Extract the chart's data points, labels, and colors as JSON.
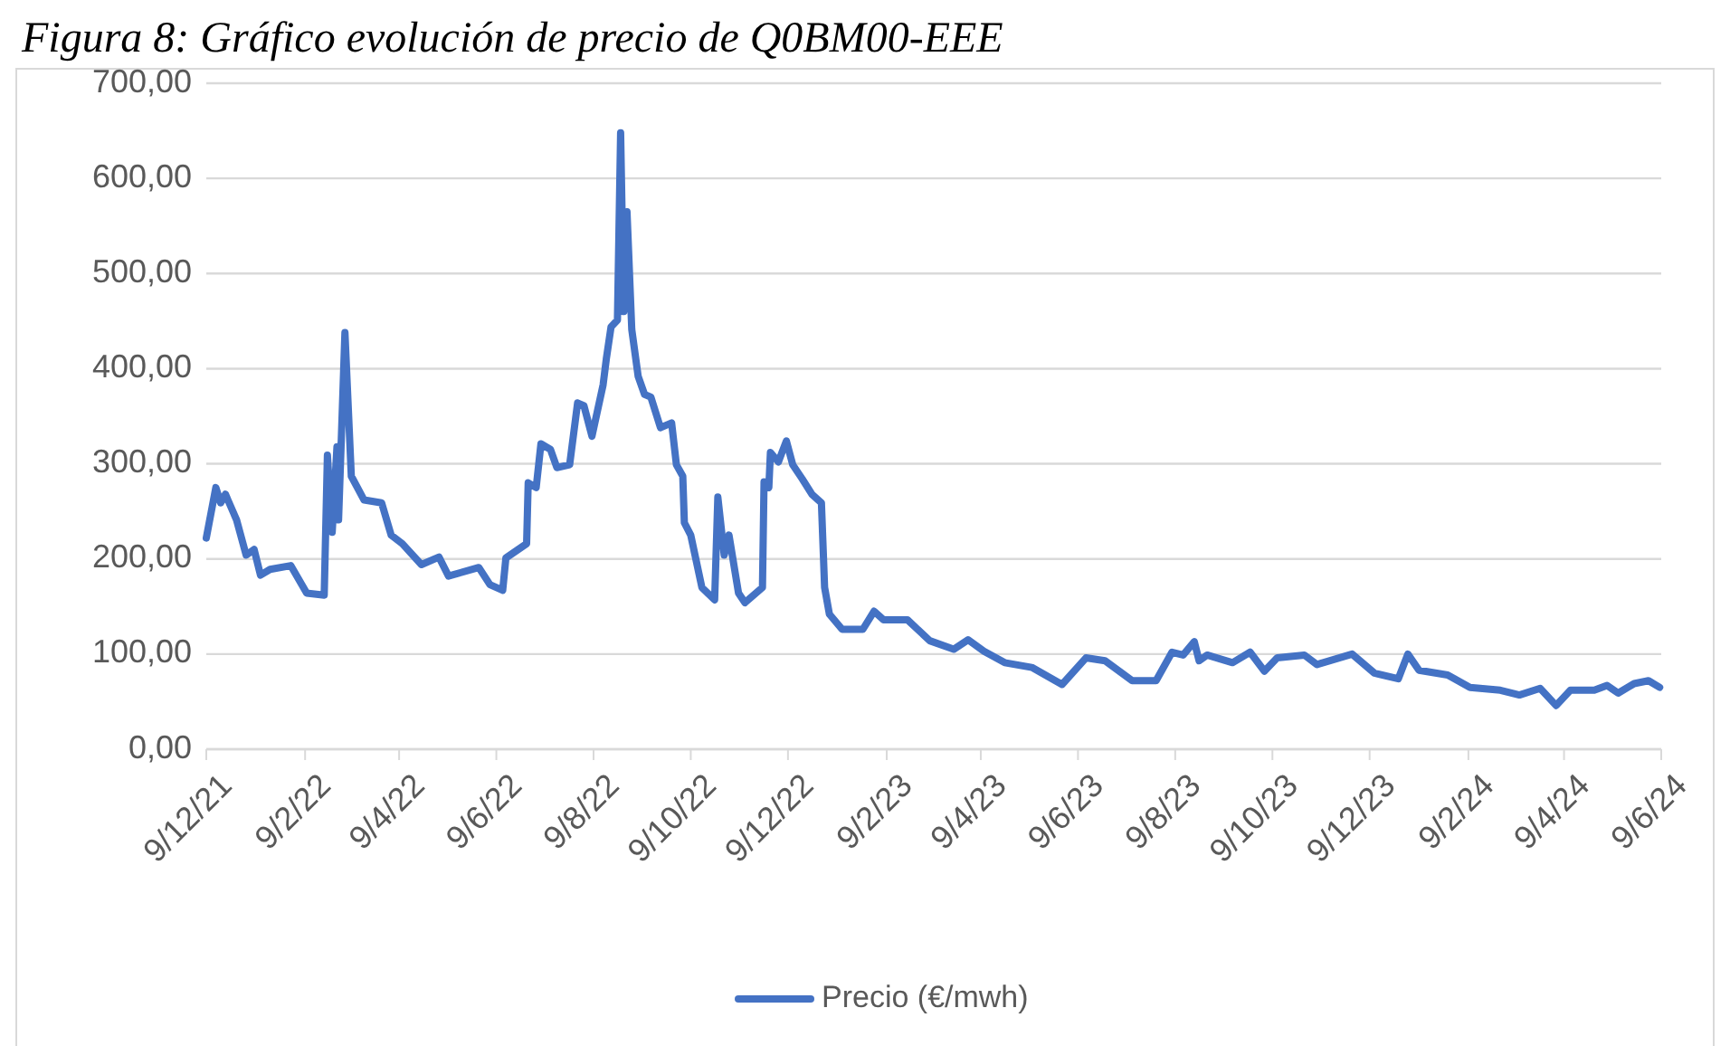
{
  "chart_data": {
    "type": "line",
    "title": "Figura 8: Gráfico evolución de precio de Q0BM00-EEE",
    "legend": "bottom",
    "grid": "y",
    "marker": "none",
    "line_style": "solid",
    "xlim": [
      "2021-12-09",
      "2024-06-09"
    ],
    "xticks": [
      {
        "value": "2021-12-09",
        "label": "9/12/21"
      },
      {
        "value": "2022-02-09",
        "label": "9/2/22"
      },
      {
        "value": "2022-04-09",
        "label": "9/4/22"
      },
      {
        "value": "2022-06-09",
        "label": "9/6/22"
      },
      {
        "value": "2022-08-09",
        "label": "9/8/22"
      },
      {
        "value": "2022-10-09",
        "label": "9/10/22"
      },
      {
        "value": "2022-12-09",
        "label": "9/12/22"
      },
      {
        "value": "2023-02-09",
        "label": "9/2/23"
      },
      {
        "value": "2023-04-09",
        "label": "9/4/23"
      },
      {
        "value": "2023-06-09",
        "label": "9/6/23"
      },
      {
        "value": "2023-08-09",
        "label": "9/8/23"
      },
      {
        "value": "2023-10-09",
        "label": "9/10/23"
      },
      {
        "value": "2023-12-09",
        "label": "9/12/23"
      },
      {
        "value": "2024-02-09",
        "label": "9/2/24"
      },
      {
        "value": "2024-04-09",
        "label": "9/4/24"
      },
      {
        "value": "2024-06-09",
        "label": "9/6/24"
      }
    ],
    "ylim": [
      0,
      700
    ],
    "yticks": [
      {
        "value": 0,
        "label": "0,00"
      },
      {
        "value": 100,
        "label": "100,00"
      },
      {
        "value": 200,
        "label": "200,00"
      },
      {
        "value": 300,
        "label": "300,00"
      },
      {
        "value": 400,
        "label": "400,00"
      },
      {
        "value": 500,
        "label": "500,00"
      },
      {
        "value": 600,
        "label": "600,00"
      },
      {
        "value": 700,
        "label": "700,00"
      }
    ],
    "x": [
      "2021-12-09",
      "2021-12-15",
      "2021-12-18",
      "2021-12-21",
      "2021-12-28",
      "2022-01-03",
      "2022-01-08",
      "2022-01-12",
      "2022-01-18",
      "2022-01-31",
      "2022-02-10",
      "2022-02-21",
      "2022-02-23",
      "2022-02-26",
      "2022-03-01",
      "2022-03-02",
      "2022-03-06",
      "2022-03-10",
      "2022-03-18",
      "2022-03-29",
      "2022-04-04",
      "2022-04-11",
      "2022-04-23",
      "2022-05-04",
      "2022-05-10",
      "2022-05-29",
      "2022-06-05",
      "2022-06-13",
      "2022-06-15",
      "2022-06-28",
      "2022-06-29",
      "2022-07-04",
      "2022-07-07",
      "2022-07-13",
      "2022-07-17",
      "2022-07-25",
      "2022-07-30",
      "2022-08-03",
      "2022-08-08",
      "2022-08-15",
      "2022-08-17",
      "2022-08-20",
      "2022-08-24",
      "2022-08-26",
      "2022-08-28",
      "2022-08-30",
      "2022-09-02",
      "2022-09-06",
      "2022-09-10",
      "2022-09-14",
      "2022-09-20",
      "2022-09-27",
      "2022-09-30",
      "2022-10-04",
      "2022-10-05",
      "2022-10-09",
      "2022-10-16",
      "2022-10-24",
      "2022-10-26",
      "2022-10-30",
      "2022-11-02",
      "2022-11-08",
      "2022-11-12",
      "2022-11-23",
      "2022-11-24",
      "2022-11-27",
      "2022-11-28",
      "2022-12-03",
      "2022-12-08",
      "2022-12-12",
      "2022-12-18",
      "2022-12-24",
      "2022-12-30",
      "2023-01-01",
      "2023-01-04",
      "2023-01-12",
      "2023-01-25",
      "2023-02-01",
      "2023-02-07",
      "2023-02-22",
      "2023-03-08",
      "2023-03-23",
      "2023-04-01",
      "2023-04-11",
      "2023-04-24",
      "2023-05-11",
      "2023-05-30",
      "2023-06-14",
      "2023-06-26",
      "2023-07-13",
      "2023-07-28",
      "2023-08-07",
      "2023-08-14",
      "2023-08-21",
      "2023-08-24",
      "2023-08-29",
      "2023-09-14",
      "2023-09-25",
      "2023-10-04",
      "2023-10-12",
      "2023-10-29",
      "2023-11-06",
      "2023-11-28",
      "2023-12-12",
      "2023-12-27",
      "2024-01-02",
      "2024-01-09",
      "2024-01-27",
      "2024-02-10",
      "2024-02-29",
      "2024-03-12",
      "2024-03-25",
      "2024-04-04",
      "2024-04-13",
      "2024-04-28",
      "2024-05-06",
      "2024-05-13",
      "2024-05-23",
      "2024-06-01",
      "2024-06-08"
    ],
    "series": [
      {
        "name": "Precio (€/mwh)",
        "color": "#4472c4",
        "values": [
          222,
          275,
          259,
          268,
          241,
          204,
          210,
          183,
          189,
          193,
          164,
          162,
          309,
          228,
          318,
          241,
          438,
          287,
          262,
          259,
          225,
          216,
          194,
          202,
          182,
          191,
          173,
          167,
          201,
          216,
          280,
          275,
          321,
          315,
          296,
          299,
          364,
          361,
          329,
          383,
          410,
          444,
          451,
          648,
          460,
          565,
          441,
          392,
          373,
          370,
          338,
          343,
          299,
          287,
          238,
          225,
          170,
          157,
          265,
          204,
          225,
          164,
          154,
          170,
          281,
          275,
          312,
          302,
          324,
          299,
          284,
          268,
          259,
          170,
          142,
          126,
          126,
          145,
          136,
          136,
          114,
          105,
          115,
          103,
          91,
          86,
          68,
          96,
          93,
          72,
          72,
          102,
          99,
          113,
          93,
          99,
          91,
          102,
          82,
          96,
          99,
          89,
          100,
          80,
          74,
          100,
          83,
          78,
          65,
          62,
          57,
          64,
          46,
          62,
          62,
          67,
          59,
          69,
          72,
          65
        ]
      }
    ]
  }
}
